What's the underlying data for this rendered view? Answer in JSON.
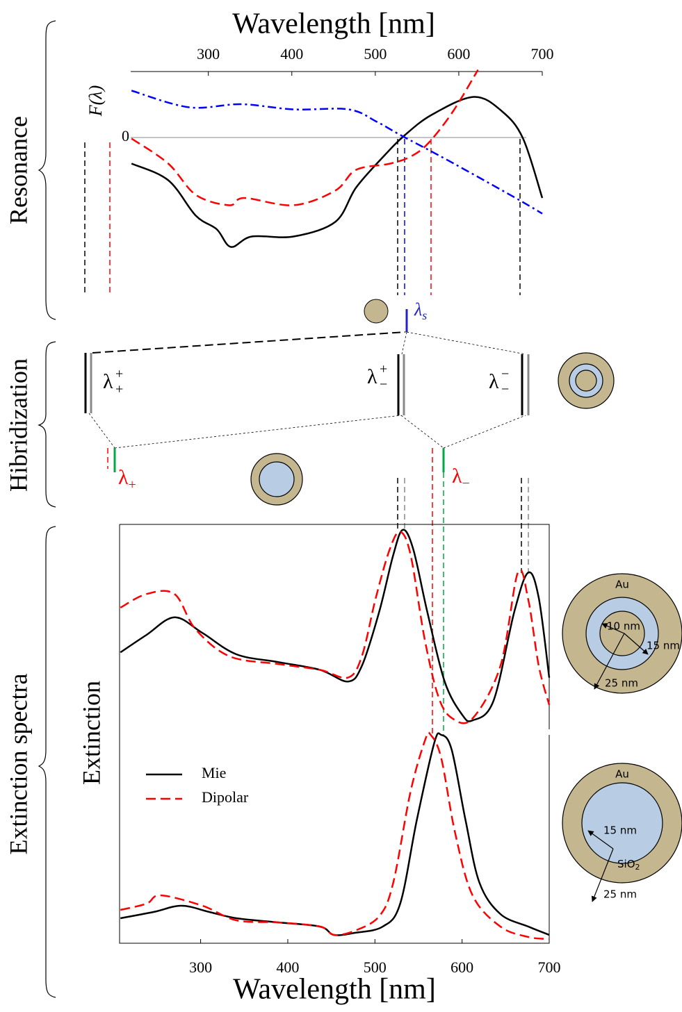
{
  "side_labels": [
    "Resonance",
    "Hibridization",
    "Extinction spectra"
  ],
  "hybridization": {
    "lambda_s": {
      "base": "λ",
      "sub": "s"
    },
    "levels": [
      {
        "base": "λ",
        "sup": "+",
        "sub": "+"
      },
      {
        "base": "λ",
        "sup": "+",
        "sub": "−"
      },
      {
        "base": "λ",
        "sup": "−",
        "sub": "−"
      }
    ],
    "hybrid": [
      {
        "base": "λ",
        "sub": "+"
      },
      {
        "base": "λ",
        "sub": "−"
      }
    ]
  },
  "particles": {
    "top": {
      "shell": "Au",
      "core": "10 nm",
      "spacer": "15 nm",
      "outer": "25 nm"
    },
    "bottom": {
      "shell": "Au",
      "core_radius": "15 nm",
      "outer": "25 nm",
      "core": {
        "base": "SiO",
        "sub": "2"
      }
    }
  },
  "chart_data": [
    {
      "type": "line",
      "xlabel": "Wavelength [nm]",
      "ylabel": "F(λ)",
      "xlim": [
        207,
        700
      ],
      "xticks": [
        300,
        400,
        500,
        600,
        700
      ],
      "ylim": [
        -1.1,
        0.7
      ],
      "yticks": [
        0
      ],
      "series": [
        {
          "color": "#000000",
          "dash": "solid",
          "x": [
            208,
            252,
            285,
            310,
            327,
            352,
            402,
            452,
            477,
            510,
            535,
            568,
            618,
            652,
            677,
            700
          ],
          "values": [
            -0.25,
            -0.41,
            -0.75,
            -0.88,
            -1.05,
            -0.95,
            -0.95,
            -0.81,
            -0.48,
            -0.18,
            0.02,
            0.22,
            0.39,
            0.25,
            -0.01,
            -0.58
          ]
        },
        {
          "color": "#ff0000",
          "dash": "dashed",
          "x": [
            208,
            252,
            285,
            325,
            343,
            402,
            452,
            477,
            518,
            543,
            564,
            593,
            623
          ],
          "values": [
            -0.01,
            -0.25,
            -0.55,
            -0.65,
            -0.58,
            -0.65,
            -0.51,
            -0.31,
            -0.25,
            -0.18,
            -0.05,
            0.25,
            0.65
          ]
        },
        {
          "color": "#0000ff",
          "dash": "dashdot",
          "x": [
            208,
            277,
            339,
            402,
            468,
            502,
            531,
            585,
            668,
            700
          ],
          "values": [
            0.45,
            0.29,
            0.32,
            0.27,
            0.27,
            0.15,
            0.02,
            -0.21,
            -0.58,
            -0.73
          ]
        }
      ]
    },
    {
      "type": "line",
      "xlim": [
        207,
        700
      ],
      "ylim": [
        0,
        1
      ],
      "series": [
        {
          "color": "#000000",
          "dash": "solid",
          "x": [
            208,
            238,
            270,
            302,
            341,
            389,
            437,
            469,
            485,
            505,
            521,
            532,
            544,
            560,
            580,
            600,
            612,
            636,
            660,
            676,
            688,
            700
          ],
          "values": [
            0.36,
            0.45,
            0.54,
            0.46,
            0.35,
            0.31,
            0.27,
            0.21,
            0.29,
            0.57,
            0.86,
            0.99,
            0.89,
            0.57,
            0.21,
            0.04,
            0.01,
            0.11,
            0.57,
            0.77,
            0.64,
            0.23
          ]
        },
        {
          "color": "#ff0000",
          "dash": "dashed",
          "x": [
            208,
            238,
            270,
            294,
            333,
            389,
            437,
            469,
            485,
            501,
            517,
            529,
            541,
            557,
            573,
            589,
            612,
            644,
            664,
            676,
            688,
            700
          ],
          "values": [
            0.59,
            0.66,
            0.66,
            0.48,
            0.34,
            0.3,
            0.27,
            0.23,
            0.34,
            0.64,
            0.89,
            0.98,
            0.86,
            0.43,
            0.13,
            0.02,
            0.02,
            0.29,
            0.77,
            0.63,
            0.29,
            0.09
          ]
        }
      ]
    },
    {
      "type": "line",
      "xlabel": "Wavelength [nm]",
      "ylabel": "Extinction",
      "xlim": [
        207,
        700
      ],
      "xticks": [
        300,
        400,
        500,
        600,
        700
      ],
      "ylim": [
        0,
        1
      ],
      "legend": "upper left",
      "series": [
        {
          "name": "Mie",
          "color": "#000000",
          "dash": "solid",
          "x": [
            208,
            246,
            278,
            310,
            341,
            389,
            437,
            453,
            477,
            509,
            529,
            548,
            568,
            576,
            588,
            604,
            620,
            644,
            676,
            700
          ],
          "values": [
            0.12,
            0.15,
            0.18,
            0.15,
            0.12,
            0.1,
            0.08,
            0.04,
            0.05,
            0.08,
            0.19,
            0.59,
            0.96,
            1.0,
            0.93,
            0.59,
            0.29,
            0.14,
            0.08,
            0.04
          ]
        },
        {
          "name": "Dipolar",
          "color": "#ff0000",
          "dash": "dashed",
          "x": [
            208,
            238,
            254,
            302,
            341,
            389,
            437,
            453,
            477,
            505,
            521,
            541,
            558,
            564,
            576,
            592,
            612,
            644,
            676,
            700
          ],
          "values": [
            0.16,
            0.19,
            0.23,
            0.18,
            0.11,
            0.1,
            0.08,
            0.04,
            0.06,
            0.13,
            0.29,
            0.73,
            0.98,
            1.0,
            0.89,
            0.53,
            0.23,
            0.08,
            0.03,
            0.02
          ]
        }
      ]
    }
  ]
}
